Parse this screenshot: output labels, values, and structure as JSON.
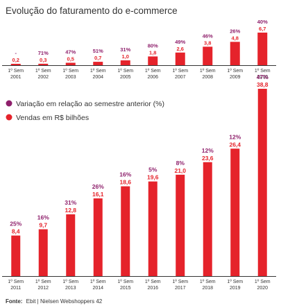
{
  "colors": {
    "bar": "#e5232b",
    "percent": "#8e1f6b",
    "value": "#e5232b",
    "axis": "#333333"
  },
  "legend": {
    "variation_label": "Variação em relação ao semestre anterior (%)",
    "sales_label": "Vendas em R$ bilhões"
  },
  "source": {
    "prefix": "Fonte:",
    "text": "Ebit | Nielsen Webshoppers 42"
  },
  "chart_data": [
    {
      "type": "bar",
      "title": "Evolução do faturamento do e-commerce",
      "semester_label": "1º Sem",
      "categories": [
        "2001",
        "2002",
        "2003",
        "2004",
        "2005",
        "2006",
        "2007",
        "2008",
        "2009",
        "2010"
      ],
      "values": [
        0.2,
        0.3,
        0.5,
        0.7,
        1.0,
        1.8,
        2.6,
        3.8,
        4.8,
        6.7
      ],
      "value_labels": [
        "0,2",
        "0,3",
        "0,5",
        "0,7",
        "1,0",
        "1,8",
        "2,6",
        "3,8",
        "4,8",
        "6,7"
      ],
      "percent_labels": [
        "-",
        "71%",
        "47%",
        "51%",
        "31%",
        "80%",
        "49%",
        "46%",
        "26%",
        "40%"
      ]
    },
    {
      "type": "bar",
      "title": "",
      "semester_label": "1º Sem",
      "categories": [
        "2011",
        "2012",
        "2013",
        "2014",
        "2015",
        "2016",
        "2017",
        "2018",
        "2019",
        "2020"
      ],
      "values": [
        8.4,
        9.7,
        12.8,
        16.1,
        18.6,
        19.6,
        21.0,
        23.6,
        26.4,
        38.8
      ],
      "value_labels": [
        "8,4",
        "9,7",
        "12,8",
        "16,1",
        "18,6",
        "19,6",
        "21,0",
        "23,6",
        "26,4",
        "38,8"
      ],
      "percent_labels": [
        "25%",
        "16%",
        "31%",
        "26%",
        "16%",
        "5%",
        "8%",
        "12%",
        "12%",
        "47%"
      ]
    }
  ]
}
